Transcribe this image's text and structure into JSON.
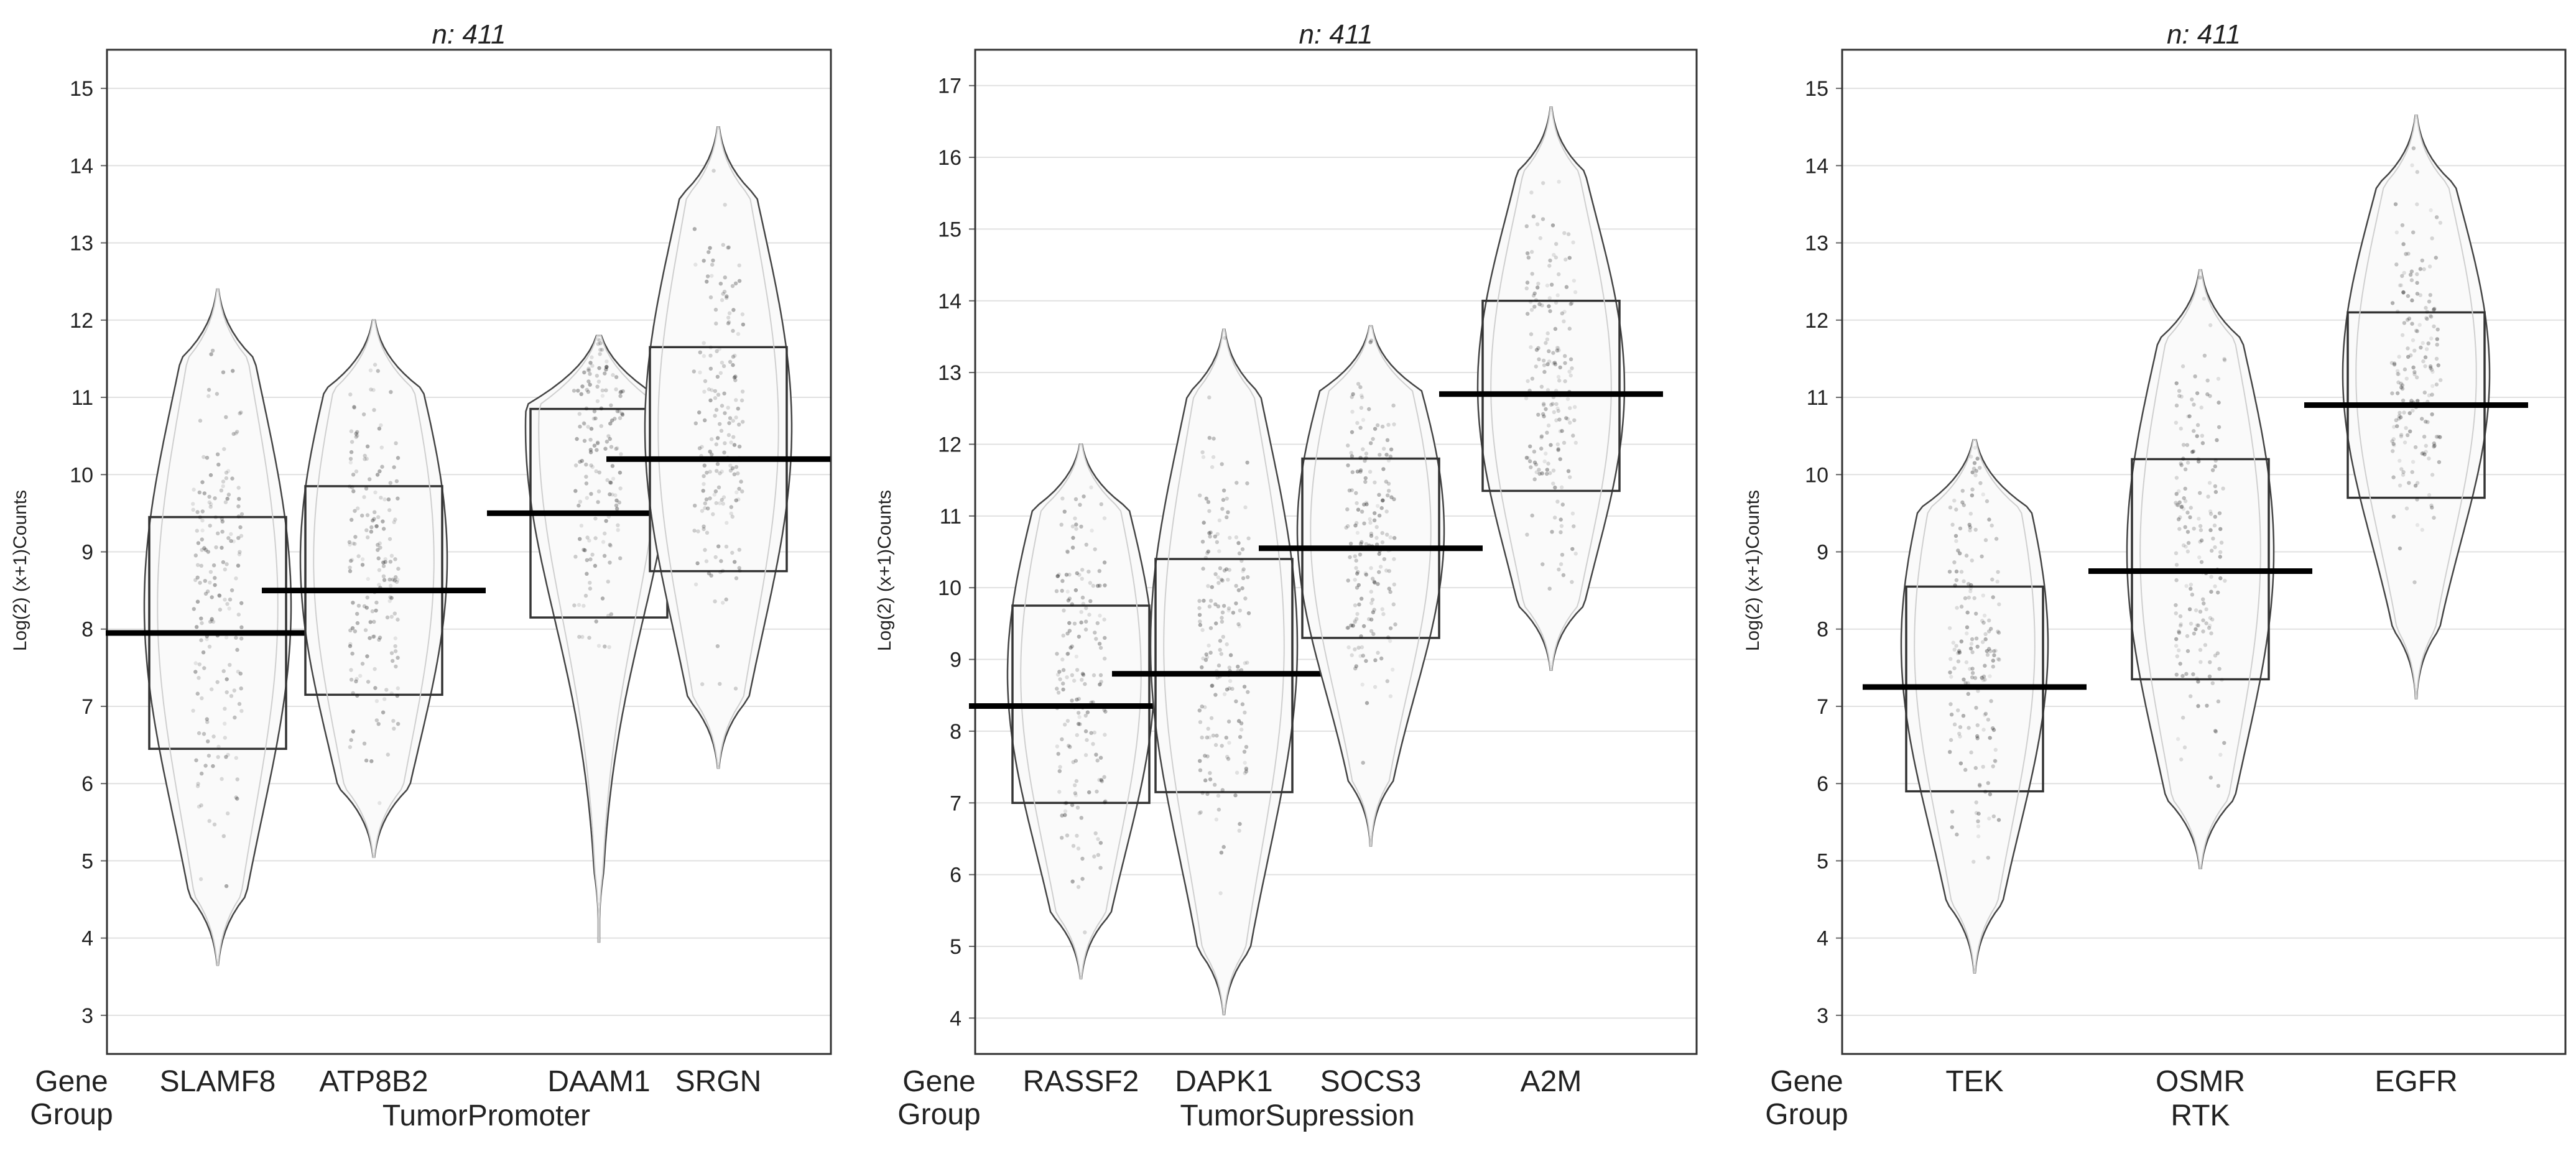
{
  "figure": {
    "row_labels": {
      "gene": "Gene",
      "group": "Group"
    }
  },
  "chart_data": [
    {
      "type": "violin-box",
      "title": "n: 411",
      "ylabel": "Log(2) (x+1)Counts",
      "ylim": [
        2.5,
        15.5
      ],
      "yticks": [
        3,
        4,
        5,
        6,
        7,
        8,
        9,
        10,
        11,
        12,
        13,
        14,
        15
      ],
      "group_label": "TumorPromoter",
      "categories": [
        "SLAMF8",
        "ATP8B2",
        "DAAM1",
        "SRGN"
      ],
      "series": [
        {
          "name": "SLAMF8",
          "min": 3.65,
          "q1": 6.45,
          "median": 7.95,
          "q3": 9.45,
          "max": 12.4,
          "density_center": 8.3
        },
        {
          "name": "ATP8B2",
          "min": 5.05,
          "q1": 7.15,
          "median": 8.5,
          "q3": 9.85,
          "max": 12.0,
          "density_center": 8.9
        },
        {
          "name": "DAAM1",
          "min": 3.95,
          "q1": 8.15,
          "median": 9.5,
          "q3": 10.85,
          "max": 11.8,
          "density_center": 10.6
        },
        {
          "name": "SRGN",
          "min": 6.2,
          "q1": 8.75,
          "median": 10.2,
          "q3": 11.65,
          "max": 14.5,
          "density_center": 10.6
        }
      ]
    },
    {
      "type": "violin-box",
      "title": "n: 411",
      "ylabel": "Log(2) (x+1)Counts",
      "ylim": [
        3.5,
        17.5
      ],
      "yticks": [
        4,
        5,
        6,
        7,
        8,
        9,
        10,
        11,
        12,
        13,
        14,
        15,
        16,
        17
      ],
      "group_label": "TumorSupression",
      "categories": [
        "RASSF2",
        "DAPK1",
        "SOCS3",
        "A2M"
      ],
      "series": [
        {
          "name": "RASSF2",
          "min": 4.55,
          "q1": 7.0,
          "median": 8.35,
          "q3": 9.75,
          "max": 12.0,
          "density_center": 8.8
        },
        {
          "name": "DAPK1",
          "min": 4.05,
          "q1": 7.15,
          "median": 8.8,
          "q3": 10.4,
          "max": 13.6,
          "density_center": 9.2
        },
        {
          "name": "SOCS3",
          "min": 6.4,
          "q1": 9.3,
          "median": 10.55,
          "q3": 11.8,
          "max": 13.65,
          "density_center": 10.8
        },
        {
          "name": "A2M",
          "min": 8.85,
          "q1": 11.35,
          "median": 12.7,
          "q3": 14.0,
          "max": 16.7,
          "density_center": 12.8
        }
      ]
    },
    {
      "type": "violin-box",
      "title": "n: 411",
      "ylabel": "Log(2) (x+1)Counts",
      "ylim": [
        2.5,
        15.5
      ],
      "yticks": [
        3,
        4,
        5,
        6,
        7,
        8,
        9,
        10,
        11,
        12,
        13,
        14,
        15
      ],
      "group_label": "RTK",
      "categories": [
        "TEK",
        "OSMR",
        "EGFR"
      ],
      "series": [
        {
          "name": "TEK",
          "min": 3.55,
          "q1": 5.9,
          "median": 7.25,
          "q3": 8.55,
          "max": 10.45,
          "density_center": 7.8
        },
        {
          "name": "OSMR",
          "min": 4.9,
          "q1": 7.35,
          "median": 8.75,
          "q3": 10.2,
          "max": 12.65,
          "density_center": 9.0
        },
        {
          "name": "EGFR",
          "min": 7.1,
          "q1": 9.7,
          "median": 10.9,
          "q3": 12.1,
          "max": 14.65,
          "density_center": 11.3
        }
      ]
    }
  ]
}
